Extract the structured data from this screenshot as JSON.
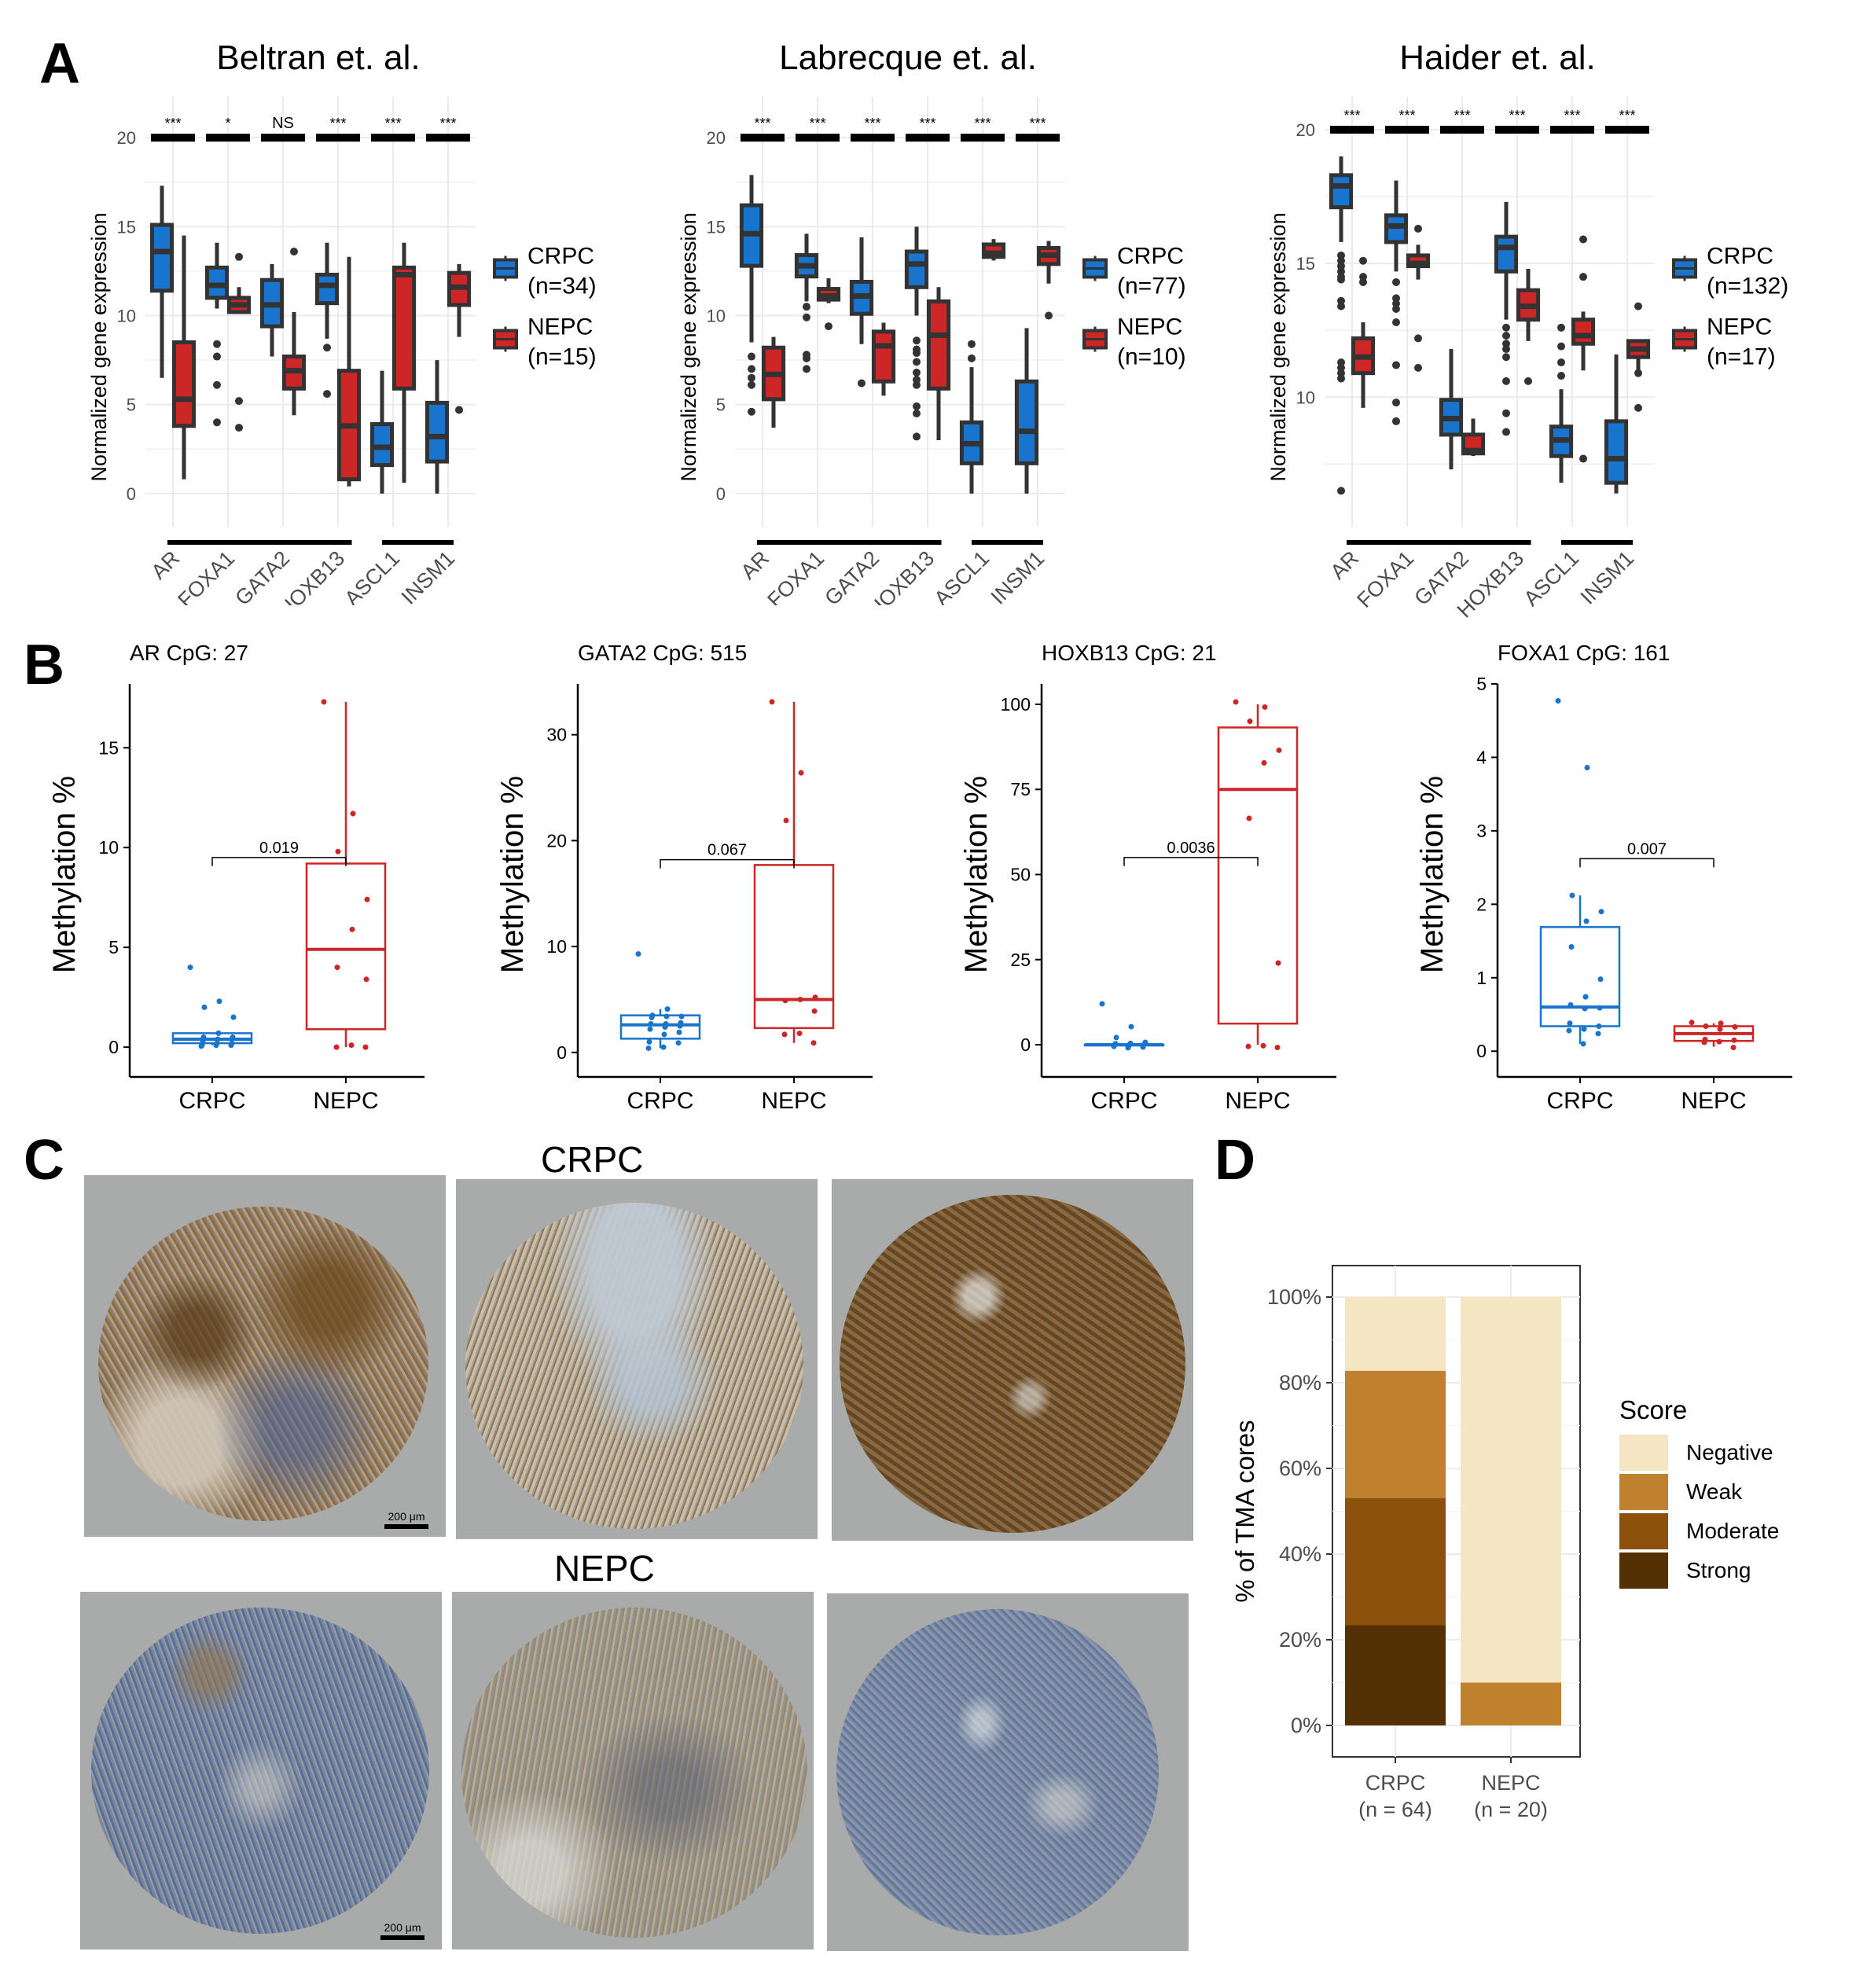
{
  "figure": {
    "panel_labels": [
      "A",
      "B",
      "C",
      "D"
    ]
  },
  "colors": {
    "crpc": "#1874CD",
    "nepc": "#CD2626",
    "box_outline": "#333333",
    "negative": "#F5E6C3",
    "weak": "#BF812D",
    "moderate": "#8C510A",
    "strong": "#543005"
  },
  "chart_data": [
    {
      "id": "A1",
      "type": "box",
      "title": "Beltran et. al.",
      "ylabel": "Normalized gene expression",
      "ylim": [
        -1.2,
        21.2
      ],
      "yticks": [
        0,
        5,
        10,
        15,
        20
      ],
      "grid": true,
      "categories": [
        "AR",
        "FOXA1",
        "GATA2",
        "HOXB13",
        "ASCL1",
        "INSM1"
      ],
      "significance": [
        "***",
        "*",
        "NS",
        "***",
        "***",
        "***"
      ],
      "groups": [
        [
          "AR",
          "FOXA1",
          "GATA2",
          "HOXB13"
        ],
        [
          "ASCL1",
          "INSM1"
        ]
      ],
      "legend": [
        {
          "name": "CRPC",
          "n": "(n=34)"
        },
        {
          "name": "NEPC",
          "n": "(n=15)"
        }
      ],
      "series": [
        {
          "name": "CRPC",
          "boxes": [
            {
              "min": 6.5,
              "q1": 11.4,
              "median": 13.6,
              "q3": 15.1,
              "max": 17.3,
              "outliers": []
            },
            {
              "min": 10.4,
              "q1": 11.0,
              "median": 11.7,
              "q3": 12.7,
              "max": 14.1,
              "outliers": [
                8.4,
                7.7,
                6.1,
                4.0
              ]
            },
            {
              "min": 7.7,
              "q1": 9.4,
              "median": 10.6,
              "q3": 12.0,
              "max": 12.9,
              "outliers": []
            },
            {
              "min": 8.7,
              "q1": 10.7,
              "median": 11.7,
              "q3": 12.3,
              "max": 14.1,
              "outliers": [
                8.2,
                5.6
              ]
            },
            {
              "min": 0.0,
              "q1": 1.6,
              "median": 2.6,
              "q3": 3.9,
              "max": 6.9,
              "outliers": []
            },
            {
              "min": 0.0,
              "q1": 1.8,
              "median": 3.2,
              "q3": 5.1,
              "max": 7.5,
              "outliers": []
            }
          ]
        },
        {
          "name": "NEPC",
          "boxes": [
            {
              "min": 0.8,
              "q1": 3.8,
              "median": 5.3,
              "q3": 8.5,
              "max": 14.5,
              "outliers": []
            },
            {
              "min": 10.2,
              "q1": 10.2,
              "median": 10.6,
              "q3": 11.0,
              "max": 11.6,
              "outliers": [
                13.3,
                5.2,
                3.7
              ]
            },
            {
              "min": 4.4,
              "q1": 5.9,
              "median": 6.9,
              "q3": 7.7,
              "max": 10.2,
              "outliers": [
                13.6
              ]
            },
            {
              "min": 0.4,
              "q1": 0.8,
              "median": 3.8,
              "q3": 6.9,
              "max": 13.3,
              "outliers": []
            },
            {
              "min": 0.6,
              "q1": 5.9,
              "median": 12.3,
              "q3": 12.7,
              "max": 14.1,
              "outliers": []
            },
            {
              "min": 8.8,
              "q1": 10.6,
              "median": 11.6,
              "q3": 12.4,
              "max": 12.9,
              "outliers": [
                4.7
              ]
            }
          ]
        }
      ]
    },
    {
      "id": "A2",
      "type": "box",
      "title": "Labrecque et. al.",
      "ylabel": "Normalized gene expression",
      "ylim": [
        -1.2,
        21.2
      ],
      "yticks": [
        0,
        5,
        10,
        15,
        20
      ],
      "grid": true,
      "categories": [
        "AR",
        "FOXA1",
        "GATA2",
        "HOXB13",
        "ASCL1",
        "INSM1"
      ],
      "significance": [
        "***",
        "***",
        "***",
        "***",
        "***",
        "***"
      ],
      "groups": [
        [
          "AR",
          "FOXA1",
          "GATA2",
          "HOXB13"
        ],
        [
          "ASCL1",
          "INSM1"
        ]
      ],
      "legend": [
        {
          "name": "CRPC",
          "n": "(n=77)"
        },
        {
          "name": "NEPC",
          "n": "(n=10)"
        }
      ],
      "series": [
        {
          "name": "CRPC",
          "boxes": [
            {
              "min": 8.5,
              "q1": 12.8,
              "median": 14.6,
              "q3": 16.2,
              "max": 17.9,
              "outliers": [
                7.7,
                7.0,
                6.5,
                6.1,
                4.6
              ]
            },
            {
              "min": 10.8,
              "q1": 12.2,
              "median": 12.8,
              "q3": 13.4,
              "max": 14.6,
              "outliers": [
                10.5,
                9.9,
                7.8,
                7.6,
                7.0
              ]
            },
            {
              "min": 8.4,
              "q1": 10.1,
              "median": 11.1,
              "q3": 11.9,
              "max": 14.4,
              "outliers": [
                6.2
              ]
            },
            {
              "min": 10.0,
              "q1": 11.6,
              "median": 12.9,
              "q3": 13.6,
              "max": 15.0,
              "outliers": [
                8.6,
                8.1,
                7.9,
                7.4,
                6.8,
                6.4,
                6.1,
                4.9,
                4.5,
                3.2
              ]
            },
            {
              "min": 0.0,
              "q1": 1.7,
              "median": 2.8,
              "q3": 4.0,
              "max": 7.1,
              "outliers": [
                8.4,
                7.6
              ]
            },
            {
              "min": 0.0,
              "q1": 1.7,
              "median": 3.5,
              "q3": 6.3,
              "max": 9.3,
              "outliers": []
            }
          ]
        },
        {
          "name": "NEPC",
          "boxes": [
            {
              "min": 3.7,
              "q1": 5.3,
              "median": 6.7,
              "q3": 8.2,
              "max": 8.8,
              "outliers": []
            },
            {
              "min": 10.7,
              "q1": 10.9,
              "median": 11.1,
              "q3": 11.5,
              "max": 12.1,
              "outliers": [
                9.4
              ]
            },
            {
              "min": 5.5,
              "q1": 6.3,
              "median": 8.3,
              "q3": 9.1,
              "max": 9.6,
              "outliers": []
            },
            {
              "min": 3.0,
              "q1": 5.9,
              "median": 8.9,
              "q3": 10.8,
              "max": 11.6,
              "outliers": []
            },
            {
              "min": 13.1,
              "q1": 13.3,
              "median": 13.5,
              "q3": 14.0,
              "max": 14.3,
              "outliers": []
            },
            {
              "min": 11.8,
              "q1": 12.9,
              "median": 13.4,
              "q3": 13.8,
              "max": 14.2,
              "outliers": [
                10.0
              ]
            }
          ]
        }
      ]
    },
    {
      "id": "A3",
      "type": "box",
      "title": "Haider et. al.",
      "ylabel": "Normalized gene expression",
      "ylim": [
        5.6,
        20.5
      ],
      "yticks": [
        10,
        15,
        20
      ],
      "grid": true,
      "categories": [
        "AR",
        "FOXA1",
        "GATA2",
        "HOXB13",
        "ASCL1",
        "INSM1"
      ],
      "significance": [
        "***",
        "***",
        "***",
        "***",
        "***",
        "***"
      ],
      "groups": [
        [
          "AR",
          "FOXA1",
          "GATA2",
          "HOXB13"
        ],
        [
          "ASCL1",
          "INSM1"
        ]
      ],
      "legend": [
        {
          "name": "CRPC",
          "n": "(n=132)"
        },
        {
          "name": "NEPC",
          "n": "(n=17)"
        }
      ],
      "series": [
        {
          "name": "CRPC",
          "boxes": [
            {
              "min": 15.8,
              "q1": 17.1,
              "median": 17.9,
              "q3": 18.3,
              "max": 19.0,
              "outliers": [
                15.3,
                15.1,
                14.9,
                14.7,
                14.5,
                14.4,
                13.6,
                13.4,
                11.3,
                11.1,
                10.9,
                10.7,
                6.5
              ]
            },
            {
              "min": 14.7,
              "q1": 15.8,
              "median": 16.4,
              "q3": 16.8,
              "max": 18.1,
              "outliers": [
                14.3,
                13.7,
                13.5,
                13.3,
                12.8,
                11.2,
                9.8,
                9.1
              ]
            },
            {
              "min": 7.3,
              "q1": 8.6,
              "median": 9.2,
              "q3": 9.9,
              "max": 11.8,
              "outliers": []
            },
            {
              "min": 12.9,
              "q1": 14.7,
              "median": 15.6,
              "q3": 16.0,
              "max": 17.3,
              "outliers": [
                12.6,
                12.3,
                12.0,
                11.8,
                11.5,
                10.6,
                9.4,
                8.7
              ]
            },
            {
              "min": 6.8,
              "q1": 7.8,
              "median": 8.4,
              "q3": 8.9,
              "max": 10.3,
              "outliers": [
                12.6,
                11.9,
                11.3,
                10.8
              ]
            },
            {
              "min": 6.4,
              "q1": 6.8,
              "median": 7.7,
              "q3": 9.1,
              "max": 11.6,
              "outliers": []
            }
          ]
        },
        {
          "name": "NEPC",
          "boxes": [
            {
              "min": 9.6,
              "q1": 10.9,
              "median": 11.5,
              "q3": 12.2,
              "max": 12.8,
              "outliers": [
                15.1,
                14.5,
                14.3
              ]
            },
            {
              "min": 14.4,
              "q1": 14.9,
              "median": 15.0,
              "q3": 15.3,
              "max": 15.7,
              "outliers": [
                16.3,
                12.2,
                11.1
              ]
            },
            {
              "min": 7.8,
              "q1": 7.9,
              "median": 8.0,
              "q3": 8.6,
              "max": 9.2,
              "outliers": []
            },
            {
              "min": 12.1,
              "q1": 12.9,
              "median": 13.4,
              "q3": 14.0,
              "max": 14.8,
              "outliers": [
                10.6
              ]
            },
            {
              "min": 11.0,
              "q1": 12.0,
              "median": 12.3,
              "q3": 12.9,
              "max": 13.2,
              "outliers": [
                15.9,
                14.5,
                7.7
              ]
            },
            {
              "min": 10.9,
              "q1": 11.5,
              "median": 11.8,
              "q3": 12.1,
              "max": 12.1,
              "outliers": [
                13.4,
                10.9,
                9.6
              ]
            }
          ]
        }
      ]
    },
    {
      "id": "B1",
      "type": "box_jitter",
      "title": "AR CpG: 27",
      "ylabel": "Methylation %",
      "ylim": [
        -0.9,
        18.2
      ],
      "yticks": [
        0,
        5,
        10,
        15
      ],
      "categories": [
        "CRPC",
        "NEPC"
      ],
      "pvalue": "0.019",
      "bracket_y": 9.5,
      "boxes": [
        {
          "min": 0.1,
          "q1": 0.2,
          "median": 0.4,
          "q3": 0.7,
          "max": 0.7,
          "points": [
            4.0,
            2.3,
            2.0,
            1.5,
            0.7,
            0.5,
            0.5,
            0.4,
            0.3,
            0.2,
            0.2,
            0.1,
            0.1,
            0.1,
            0.05
          ]
        },
        {
          "min": 0.0,
          "q1": 0.9,
          "median": 4.9,
          "q3": 9.2,
          "max": 17.3,
          "points": [
            17.3,
            11.7,
            9.8,
            7.4,
            5.9,
            4.0,
            3.4,
            0.1,
            0.0,
            0.0
          ]
        }
      ]
    },
    {
      "id": "B2",
      "type": "box_jitter",
      "title": "GATA2 CpG: 515",
      "ylabel": "Methylation %",
      "ylim": [
        -1.2,
        34.8
      ],
      "yticks": [
        0,
        10,
        20,
        30
      ],
      "categories": [
        "CRPC",
        "NEPC"
      ],
      "pvalue": "0.067",
      "bracket_y": 18.2,
      "boxes": [
        {
          "min": 0.4,
          "q1": 1.3,
          "median": 2.6,
          "q3": 3.5,
          "max": 4.1,
          "points": [
            9.3,
            4.1,
            3.5,
            3.4,
            3.4,
            3.3,
            2.8,
            2.7,
            2.7,
            2.5,
            2.4,
            2.2,
            1.9,
            1.7,
            1.0,
            0.9,
            0.5,
            0.4
          ]
        },
        {
          "min": 0.9,
          "q1": 2.3,
          "median": 5.0,
          "q3": 17.7,
          "max": 33.1,
          "points": [
            33.1,
            26.4,
            21.9,
            5.2,
            5.0,
            4.9,
            3.9,
            1.8,
            1.7,
            0.9
          ]
        }
      ]
    },
    {
      "id": "B3",
      "type": "box_jitter",
      "title": "HOXB13 CpG: 21",
      "ylabel": "Methylation %",
      "ylim": [
        -6,
        106
      ],
      "yticks": [
        0,
        25,
        50,
        75,
        100
      ],
      "categories": [
        "CRPC",
        "NEPC"
      ],
      "pvalue": "0.0036",
      "bracket_y": 55,
      "boxes": [
        {
          "min": 0.0,
          "q1": 0.0,
          "median": 0.0,
          "q3": 0.0,
          "max": 0.0,
          "points": [
            12.0,
            5.3,
            2.1,
            0.7,
            0.4,
            0.3,
            0.2,
            0.1,
            0.0,
            0.0,
            -0.3,
            -0.5,
            -0.7,
            -0.9
          ]
        },
        {
          "min": 0.0,
          "q1": 6.2,
          "median": 75.0,
          "q3": 93.2,
          "max": 100.0,
          "points": [
            100.7,
            99.2,
            95.0,
            86.5,
            82.8,
            66.5,
            24.0,
            -0.3,
            -0.5,
            -0.8
          ]
        }
      ]
    },
    {
      "id": "B4",
      "type": "box_jitter",
      "title": "FOXA1 CpG: 161",
      "ylabel": "Methylation %",
      "ylim": [
        -0.19,
        5.0
      ],
      "yticks": [
        0,
        1,
        2,
        3,
        4,
        5
      ],
      "categories": [
        "CRPC",
        "NEPC"
      ],
      "pvalue": "0.007",
      "bracket_y": 2.62,
      "boxes": [
        {
          "min": 0.1,
          "q1": 0.34,
          "median": 0.6,
          "q3": 1.69,
          "max": 2.12,
          "points": [
            4.77,
            3.86,
            2.12,
            1.9,
            1.77,
            1.42,
            0.98,
            0.74,
            0.63,
            0.59,
            0.58,
            0.38,
            0.34,
            0.3,
            0.28,
            0.24,
            0.1
          ]
        },
        {
          "min": 0.06,
          "q1": 0.14,
          "median": 0.24,
          "q3": 0.34,
          "max": 0.38,
          "points": [
            0.39,
            0.38,
            0.34,
            0.33,
            0.3,
            0.16,
            0.15,
            0.13,
            0.12,
            0.05
          ]
        }
      ]
    },
    {
      "id": "D",
      "type": "bar",
      "stacked": true,
      "ylabel": "% of TMA cores",
      "ylim": [
        0,
        100
      ],
      "yticks": [
        "0%",
        "20%",
        "40%",
        "60%",
        "80%",
        "100%"
      ],
      "categories": [
        {
          "name": "CRPC",
          "n": "(n = 64)"
        },
        {
          "name": "NEPC",
          "n": "(n = 20)"
        }
      ],
      "legend_title": "Score",
      "legend": [
        "Negative",
        "Weak",
        "Moderate",
        "Strong"
      ],
      "series": [
        {
          "name": "Strong",
          "values": [
            23.4,
            0
          ]
        },
        {
          "name": "Moderate",
          "values": [
            29.7,
            0
          ]
        },
        {
          "name": "Weak",
          "values": [
            29.7,
            10.0
          ]
        },
        {
          "name": "Negative",
          "values": [
            17.2,
            90.0
          ]
        }
      ]
    }
  ],
  "panel_c": {
    "rows": [
      {
        "label": "CRPC",
        "cores": [
          "strong-mixed",
          "moderate",
          "strong"
        ]
      },
      {
        "label": "NEPC",
        "cores": [
          "negative",
          "negative",
          "negative"
        ]
      }
    ],
    "scale_bar": "200 μm"
  }
}
